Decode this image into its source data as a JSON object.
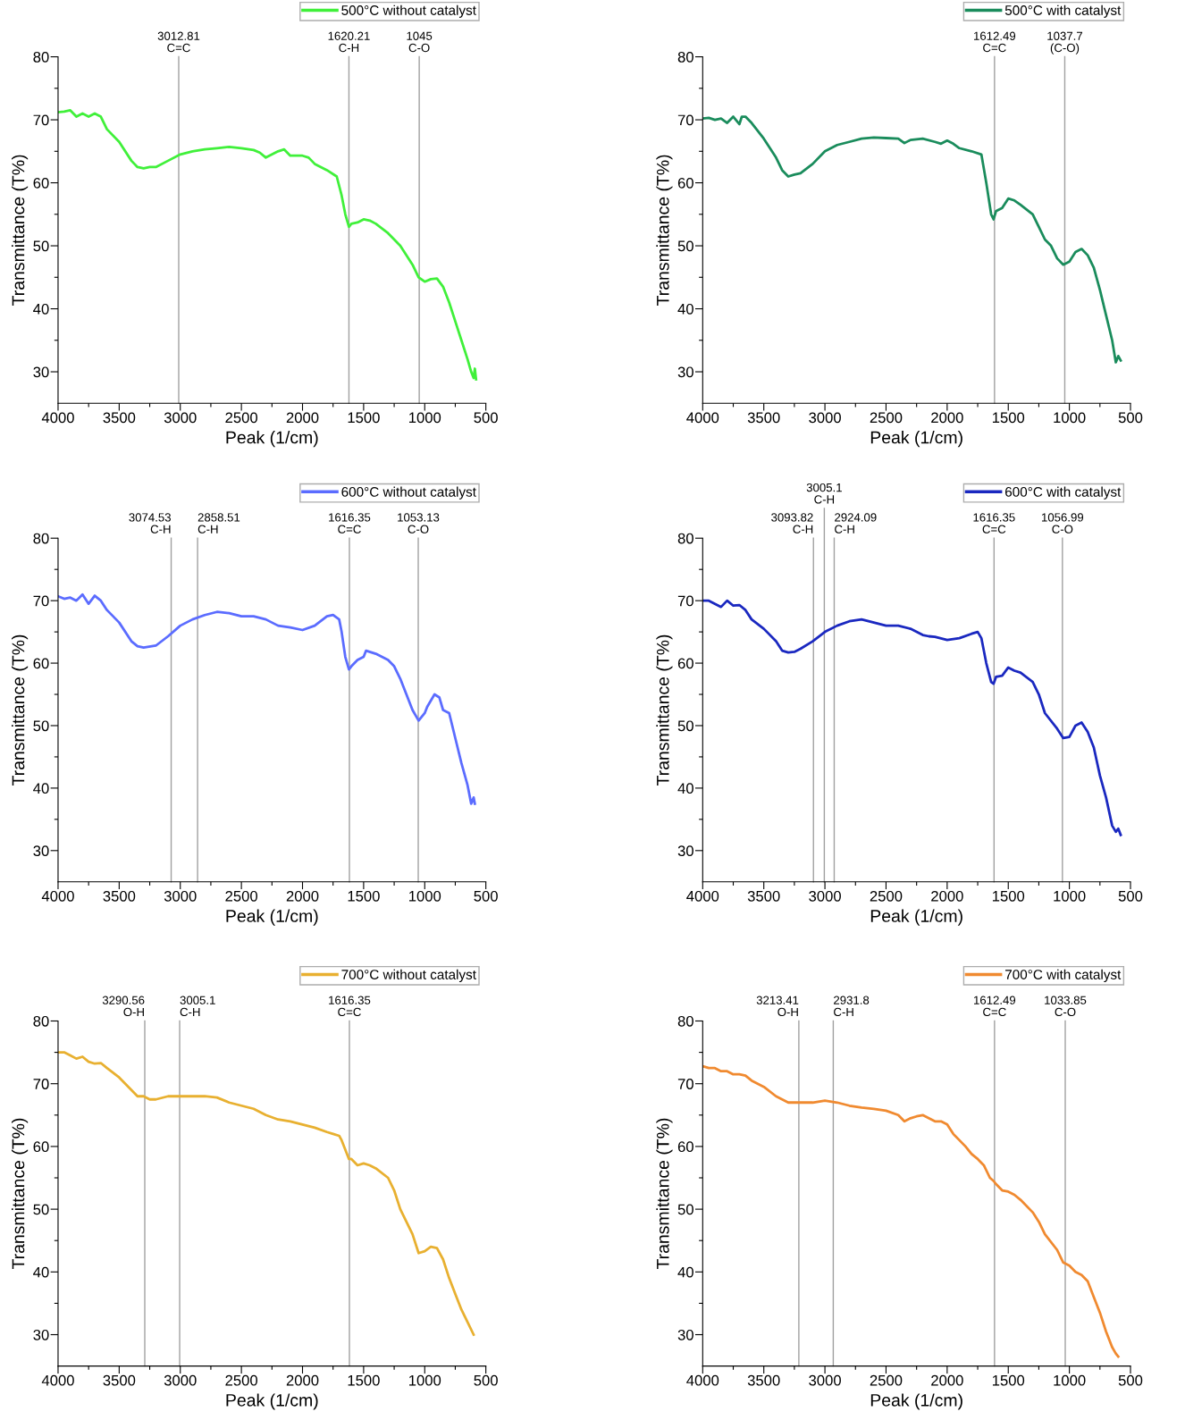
{
  "chart_data": [
    {
      "type": "line",
      "xlabel": "Peak (1/cm)",
      "ylabel": "Transmittance (T%)",
      "xlim": [
        4000,
        500
      ],
      "ylim": [
        25,
        80
      ],
      "legend": "top right",
      "grid": false,
      "xticks": [
        4000,
        {
          "value": 3750,
          "label": null
        },
        3500,
        {
          "value": 3250,
          "label": null
        },
        3000,
        {
          "value": 2750,
          "label": null
        },
        2500,
        {
          "value": 2250,
          "label": null
        },
        2000,
        {
          "value": 1750,
          "label": null
        },
        1500,
        {
          "value": 1250,
          "label": null
        },
        1000,
        {
          "value": 750,
          "label": null
        },
        500
      ],
      "yticks": [
        30,
        {
          "value": 35,
          "label": null
        },
        40,
        {
          "value": 45,
          "label": null
        },
        50,
        {
          "value": 55,
          "label": null
        },
        60,
        {
          "value": 65,
          "label": null
        },
        70,
        {
          "value": 75,
          "label": null
        },
        80
      ],
      "ref_lines": [
        {
          "axis": "x",
          "value": 3012.81,
          "label": "3012.81\nC=C"
        },
        {
          "axis": "x",
          "value": 1620.21,
          "label": "1620.21\nC-H"
        },
        {
          "axis": "x",
          "value": 1045,
          "label": "1045\nC-O"
        }
      ],
      "series": [
        {
          "name": "500°C without catalyst",
          "color": "#40f03a",
          "x": [
            4000,
            3950,
            3900,
            3850,
            3800,
            3750,
            3700,
            3650,
            3600,
            3500,
            3400,
            3350,
            3300,
            3250,
            3200,
            3100,
            3000,
            2900,
            2800,
            2700,
            2600,
            2500,
            2400,
            2350,
            2300,
            2250,
            2200,
            2150,
            2100,
            2000,
            1950,
            1900,
            1800,
            1720,
            1680,
            1650,
            1620,
            1600,
            1550,
            1500,
            1450,
            1400,
            1300,
            1200,
            1100,
            1050,
            1000,
            950,
            900,
            850,
            800,
            750,
            700,
            650,
            620,
            600,
            590,
            580
          ],
          "values": [
            71.2,
            71.3,
            71.5,
            70.5,
            71,
            70.5,
            71,
            70.5,
            68.5,
            66.5,
            63.5,
            62.5,
            62.3,
            62.5,
            62.5,
            63.5,
            64.5,
            65,
            65.3,
            65.5,
            65.7,
            65.5,
            65.2,
            64.8,
            64,
            64.5,
            65,
            65.3,
            64.3,
            64.3,
            64,
            63,
            62,
            61,
            58,
            55,
            53,
            53.5,
            53.7,
            54.2,
            54,
            53.5,
            52,
            50,
            47,
            45,
            44.3,
            44.7,
            44.8,
            43.5,
            41,
            38,
            35,
            32,
            30,
            29,
            30.5,
            28.8
          ]
        }
      ]
    },
    {
      "type": "line",
      "xlabel": "Peak (1/cm)",
      "ylabel": "Transmittance (T%)",
      "xlim": [
        4000,
        500
      ],
      "ylim": [
        25,
        80
      ],
      "legend": "top right",
      "grid": false,
      "xticks": [
        4000,
        {
          "value": 3750,
          "label": null
        },
        3500,
        {
          "value": 3250,
          "label": null
        },
        3000,
        {
          "value": 2750,
          "label": null
        },
        2500,
        {
          "value": 2250,
          "label": null
        },
        2000,
        {
          "value": 1750,
          "label": null
        },
        1500,
        {
          "value": 1250,
          "label": null
        },
        1000,
        {
          "value": 750,
          "label": null
        },
        500
      ],
      "yticks": [
        30,
        {
          "value": 35,
          "label": null
        },
        40,
        {
          "value": 45,
          "label": null
        },
        50,
        {
          "value": 55,
          "label": null
        },
        60,
        {
          "value": 65,
          "label": null
        },
        70,
        {
          "value": 75,
          "label": null
        },
        80
      ],
      "ref_lines": [
        {
          "axis": "x",
          "value": 1612.49,
          "label": "1612.49\nC=C"
        },
        {
          "axis": "x",
          "value": 1037.7,
          "label": "1037.7\n(C-O)"
        }
      ],
      "series": [
        {
          "name": "500°C with catalyst",
          "color": "#1a8c5c",
          "x": [
            4000,
            3950,
            3900,
            3850,
            3800,
            3750,
            3700,
            3680,
            3650,
            3600,
            3500,
            3400,
            3350,
            3300,
            3250,
            3200,
            3100,
            3000,
            2900,
            2800,
            2700,
            2600,
            2500,
            2400,
            2350,
            2300,
            2200,
            2100,
            2050,
            2000,
            1950,
            1900,
            1800,
            1720,
            1680,
            1640,
            1620,
            1600,
            1550,
            1500,
            1450,
            1400,
            1300,
            1250,
            1200,
            1150,
            1100,
            1050,
            1000,
            950,
            900,
            850,
            800,
            750,
            700,
            650,
            620,
            600,
            580
          ],
          "values": [
            70.2,
            70.3,
            70,
            70.2,
            69.5,
            70.5,
            69.3,
            70.5,
            70.5,
            69.5,
            67,
            64,
            62,
            61,
            61.3,
            61.5,
            63,
            65,
            66,
            66.5,
            67,
            67.2,
            67.1,
            67,
            66.3,
            66.8,
            67,
            66.5,
            66.2,
            66.7,
            66.2,
            65.5,
            65,
            64.5,
            60,
            55,
            54.2,
            55.5,
            56,
            57.5,
            57.2,
            56.5,
            55,
            53,
            51,
            50,
            48,
            47,
            47.5,
            49,
            49.5,
            48.5,
            46.5,
            43,
            39,
            35,
            31.5,
            32.5,
            31.8
          ]
        }
      ]
    },
    {
      "type": "line",
      "xlabel": "Peak (1/cm)",
      "ylabel": "Transmittance (T%)",
      "xlim": [
        4000,
        500
      ],
      "ylim": [
        25,
        80
      ],
      "legend": "top right",
      "grid": false,
      "xticks": [
        4000,
        {
          "value": 3750,
          "label": null
        },
        3500,
        {
          "value": 3250,
          "label": null
        },
        3000,
        {
          "value": 2750,
          "label": null
        },
        2500,
        {
          "value": 2250,
          "label": null
        },
        2000,
        {
          "value": 1750,
          "label": null
        },
        1500,
        {
          "value": 1250,
          "label": null
        },
        1000,
        {
          "value": 750,
          "label": null
        },
        500
      ],
      "yticks": [
        30,
        {
          "value": 35,
          "label": null
        },
        40,
        {
          "value": 45,
          "label": null
        },
        50,
        {
          "value": 55,
          "label": null
        },
        60,
        {
          "value": 65,
          "label": null
        },
        70,
        {
          "value": 75,
          "label": null
        },
        80
      ],
      "ref_lines": [
        {
          "axis": "x",
          "value": 3074.53,
          "label": "3074.53\nC-H"
        },
        {
          "axis": "x",
          "value": 2858.51,
          "label": "2858.51\nC-H"
        },
        {
          "axis": "x",
          "value": 1616.35,
          "label": "1616.35\nC=C"
        },
        {
          "axis": "x",
          "value": 1053.13,
          "label": "1053.13\nC-O"
        }
      ],
      "series": [
        {
          "name": "600°C without catalyst",
          "color": "#5b6cff",
          "x": [
            4000,
            3950,
            3900,
            3850,
            3800,
            3750,
            3700,
            3650,
            3600,
            3500,
            3400,
            3350,
            3300,
            3200,
            3100,
            3000,
            2900,
            2800,
            2700,
            2600,
            2500,
            2400,
            2300,
            2200,
            2100,
            2000,
            1900,
            1800,
            1750,
            1700,
            1680,
            1650,
            1620,
            1600,
            1550,
            1500,
            1480,
            1400,
            1300,
            1250,
            1200,
            1150,
            1100,
            1050,
            1000,
            980,
            950,
            920,
            880,
            850,
            800,
            750,
            700,
            650,
            620,
            600,
            590
          ],
          "values": [
            70.7,
            70.3,
            70.5,
            70,
            71,
            69.5,
            70.8,
            70,
            68.5,
            66.5,
            63.5,
            62.7,
            62.5,
            62.8,
            64.3,
            66,
            67,
            67.7,
            68.2,
            68,
            67.5,
            67.5,
            67,
            66,
            65.7,
            65.3,
            66,
            67.5,
            67.7,
            67,
            65,
            61,
            59,
            59.5,
            60.5,
            61,
            62,
            61.5,
            60.5,
            59.5,
            57.5,
            55,
            52.5,
            50.8,
            52,
            53,
            54,
            55,
            54.5,
            52.5,
            52,
            48,
            44,
            40.5,
            37.5,
            38.5,
            37.5
          ]
        }
      ]
    },
    {
      "type": "line",
      "xlabel": "Peak (1/cm)",
      "ylabel": "Transmittance (T%)",
      "xlim": [
        4000,
        500
      ],
      "ylim": [
        25,
        80
      ],
      "legend": "top right",
      "grid": false,
      "xticks": [
        4000,
        {
          "value": 3750,
          "label": null
        },
        3500,
        {
          "value": 3250,
          "label": null
        },
        3000,
        {
          "value": 2750,
          "label": null
        },
        2500,
        {
          "value": 2250,
          "label": null
        },
        2000,
        {
          "value": 1750,
          "label": null
        },
        1500,
        {
          "value": 1250,
          "label": null
        },
        1000,
        {
          "value": 750,
          "label": null
        },
        500
      ],
      "yticks": [
        30,
        {
          "value": 35,
          "label": null
        },
        40,
        {
          "value": 45,
          "label": null
        },
        50,
        {
          "value": 55,
          "label": null
        },
        60,
        {
          "value": 65,
          "label": null
        },
        70,
        {
          "value": 75,
          "label": null
        },
        80
      ],
      "ref_lines": [
        {
          "axis": "x",
          "value": 3093.82,
          "label": "3093.82\nC-H"
        },
        {
          "axis": "x",
          "value": 3005.1,
          "label": "3005.1\nC-H"
        },
        {
          "axis": "x",
          "value": 2924.09,
          "label": "2924.09\nC-H"
        },
        {
          "axis": "x",
          "value": 1616.35,
          "label": "1616.35\nC=C"
        },
        {
          "axis": "x",
          "value": 1056.99,
          "label": "1056.99\nC-O"
        }
      ],
      "series": [
        {
          "name": "600°C with catalyst",
          "color": "#1a28c0",
          "x": [
            4000,
            3950,
            3900,
            3850,
            3800,
            3750,
            3700,
            3650,
            3600,
            3500,
            3400,
            3350,
            3300,
            3250,
            3200,
            3100,
            3000,
            2900,
            2800,
            2700,
            2600,
            2500,
            2400,
            2300,
            2200,
            2150,
            2100,
            2000,
            1900,
            1800,
            1750,
            1720,
            1680,
            1640,
            1620,
            1600,
            1550,
            1500,
            1450,
            1400,
            1300,
            1250,
            1200,
            1100,
            1050,
            1000,
            950,
            900,
            850,
            800,
            750,
            700,
            650,
            620,
            600,
            580
          ],
          "values": [
            70,
            70,
            69.5,
            69,
            70,
            69.2,
            69.3,
            68.5,
            67,
            65.5,
            63.5,
            62,
            61.7,
            61.8,
            62.3,
            63.5,
            65,
            66,
            66.7,
            67,
            66.5,
            66,
            66,
            65.5,
            64.5,
            64.3,
            64.2,
            63.7,
            64,
            64.7,
            65,
            64,
            60,
            57,
            56.7,
            57.8,
            58,
            59.3,
            58.8,
            58.5,
            57,
            55,
            52,
            49.5,
            48,
            48.2,
            50,
            50.5,
            49,
            46.5,
            42,
            38.5,
            34,
            33,
            33.5,
            32.5
          ]
        }
      ]
    },
    {
      "type": "line",
      "xlabel": "Peak (1/cm)",
      "ylabel": "Transmittance (T%)",
      "xlim": [
        4000,
        500
      ],
      "ylim": [
        25,
        80
      ],
      "legend": "top right",
      "grid": false,
      "xticks": [
        4000,
        {
          "value": 3750,
          "label": null
        },
        3500,
        {
          "value": 3250,
          "label": null
        },
        3000,
        {
          "value": 2750,
          "label": null
        },
        2500,
        {
          "value": 2250,
          "label": null
        },
        2000,
        {
          "value": 1750,
          "label": null
        },
        1500,
        {
          "value": 1250,
          "label": null
        },
        1000,
        {
          "value": 750,
          "label": null
        },
        500
      ],
      "yticks": [
        30,
        {
          "value": 35,
          "label": null
        },
        40,
        {
          "value": 45,
          "label": null
        },
        50,
        {
          "value": 55,
          "label": null
        },
        60,
        {
          "value": 65,
          "label": null
        },
        70,
        {
          "value": 75,
          "label": null
        },
        80
      ],
      "ref_lines": [
        {
          "axis": "x",
          "value": 3290.56,
          "label": "3290.56\nO-H"
        },
        {
          "axis": "x",
          "value": 3005.1,
          "label": "3005.1\nC-H"
        },
        {
          "axis": "x",
          "value": 1616.35,
          "label": "1616.35\nC=C"
        }
      ],
      "series": [
        {
          "name": "700°C without catalyst",
          "color": "#e8b030",
          "x": [
            4000,
            3950,
            3900,
            3850,
            3800,
            3750,
            3700,
            3650,
            3600,
            3500,
            3400,
            3350,
            3300,
            3250,
            3200,
            3100,
            3000,
            2900,
            2800,
            2700,
            2600,
            2500,
            2400,
            2300,
            2200,
            2100,
            2000,
            1900,
            1800,
            1750,
            1700,
            1680,
            1650,
            1620,
            1600,
            1550,
            1500,
            1450,
            1400,
            1300,
            1250,
            1200,
            1100,
            1050,
            1000,
            950,
            900,
            850,
            800,
            750,
            700,
            650,
            600
          ],
          "values": [
            75,
            75,
            74.5,
            74,
            74.3,
            73.5,
            73.2,
            73.3,
            72.5,
            71,
            69,
            68,
            68,
            67.5,
            67.5,
            68,
            68,
            68,
            68,
            67.8,
            67,
            66.5,
            66,
            65,
            64.3,
            64,
            63.5,
            63,
            62.3,
            62,
            61.7,
            61,
            59.5,
            58,
            58,
            57,
            57.3,
            57,
            56.5,
            55,
            53,
            50,
            46,
            43,
            43.3,
            44,
            43.8,
            42,
            39,
            36.5,
            34,
            32,
            30
          ]
        }
      ]
    },
    {
      "type": "line",
      "xlabel": "Peak (1/cm)",
      "ylabel": "Transmittance (T%)",
      "xlim": [
        4000,
        500
      ],
      "ylim": [
        25,
        80
      ],
      "legend": "top right",
      "grid": false,
      "xticks": [
        4000,
        {
          "value": 3750,
          "label": null
        },
        3500,
        {
          "value": 3250,
          "label": null
        },
        3000,
        {
          "value": 2750,
          "label": null
        },
        2500,
        {
          "value": 2250,
          "label": null
        },
        2000,
        {
          "value": 1750,
          "label": null
        },
        1500,
        {
          "value": 1250,
          "label": null
        },
        1000,
        {
          "value": 750,
          "label": null
        },
        500
      ],
      "yticks": [
        30,
        {
          "value": 35,
          "label": null
        },
        40,
        {
          "value": 45,
          "label": null
        },
        50,
        {
          "value": 55,
          "label": null
        },
        60,
        {
          "value": 65,
          "label": null
        },
        70,
        {
          "value": 75,
          "label": null
        },
        80
      ],
      "ref_lines": [
        {
          "axis": "x",
          "value": 3213.41,
          "label": "3213.41\nO-H"
        },
        {
          "axis": "x",
          "value": 2931.8,
          "label": "2931.8\nC-H"
        },
        {
          "axis": "x",
          "value": 1612.49,
          "label": "1612.49\nC=C"
        },
        {
          "axis": "x",
          "value": 1033.85,
          "label": "1033.85\nC-O"
        }
      ],
      "series": [
        {
          "name": "700°C with catalyst",
          "color": "#f08a30",
          "x": [
            4000,
            3950,
            3900,
            3850,
            3800,
            3750,
            3700,
            3650,
            3600,
            3500,
            3400,
            3300,
            3200,
            3100,
            3000,
            2900,
            2800,
            2700,
            2600,
            2500,
            2400,
            2350,
            2300,
            2250,
            2200,
            2150,
            2100,
            2050,
            2000,
            1950,
            1900,
            1850,
            1800,
            1750,
            1700,
            1650,
            1620,
            1600,
            1550,
            1500,
            1450,
            1400,
            1300,
            1250,
            1200,
            1100,
            1050,
            1000,
            950,
            900,
            850,
            800,
            750,
            700,
            650,
            620,
            600
          ],
          "values": [
            72.8,
            72.5,
            72.5,
            72,
            72,
            71.5,
            71.5,
            71.3,
            70.5,
            69.5,
            68,
            67,
            67,
            67,
            67.3,
            67,
            66.5,
            66.2,
            66,
            65.7,
            65,
            64,
            64.5,
            64.8,
            65,
            64.5,
            64,
            64,
            63.5,
            62,
            61,
            60,
            58.8,
            58,
            57,
            55,
            54.5,
            54,
            53,
            52.8,
            52.3,
            51.5,
            49.5,
            48,
            46,
            43.5,
            41.5,
            41,
            40,
            39.5,
            38.5,
            36,
            33.5,
            30.5,
            28,
            27,
            26.5
          ]
        }
      ]
    }
  ]
}
